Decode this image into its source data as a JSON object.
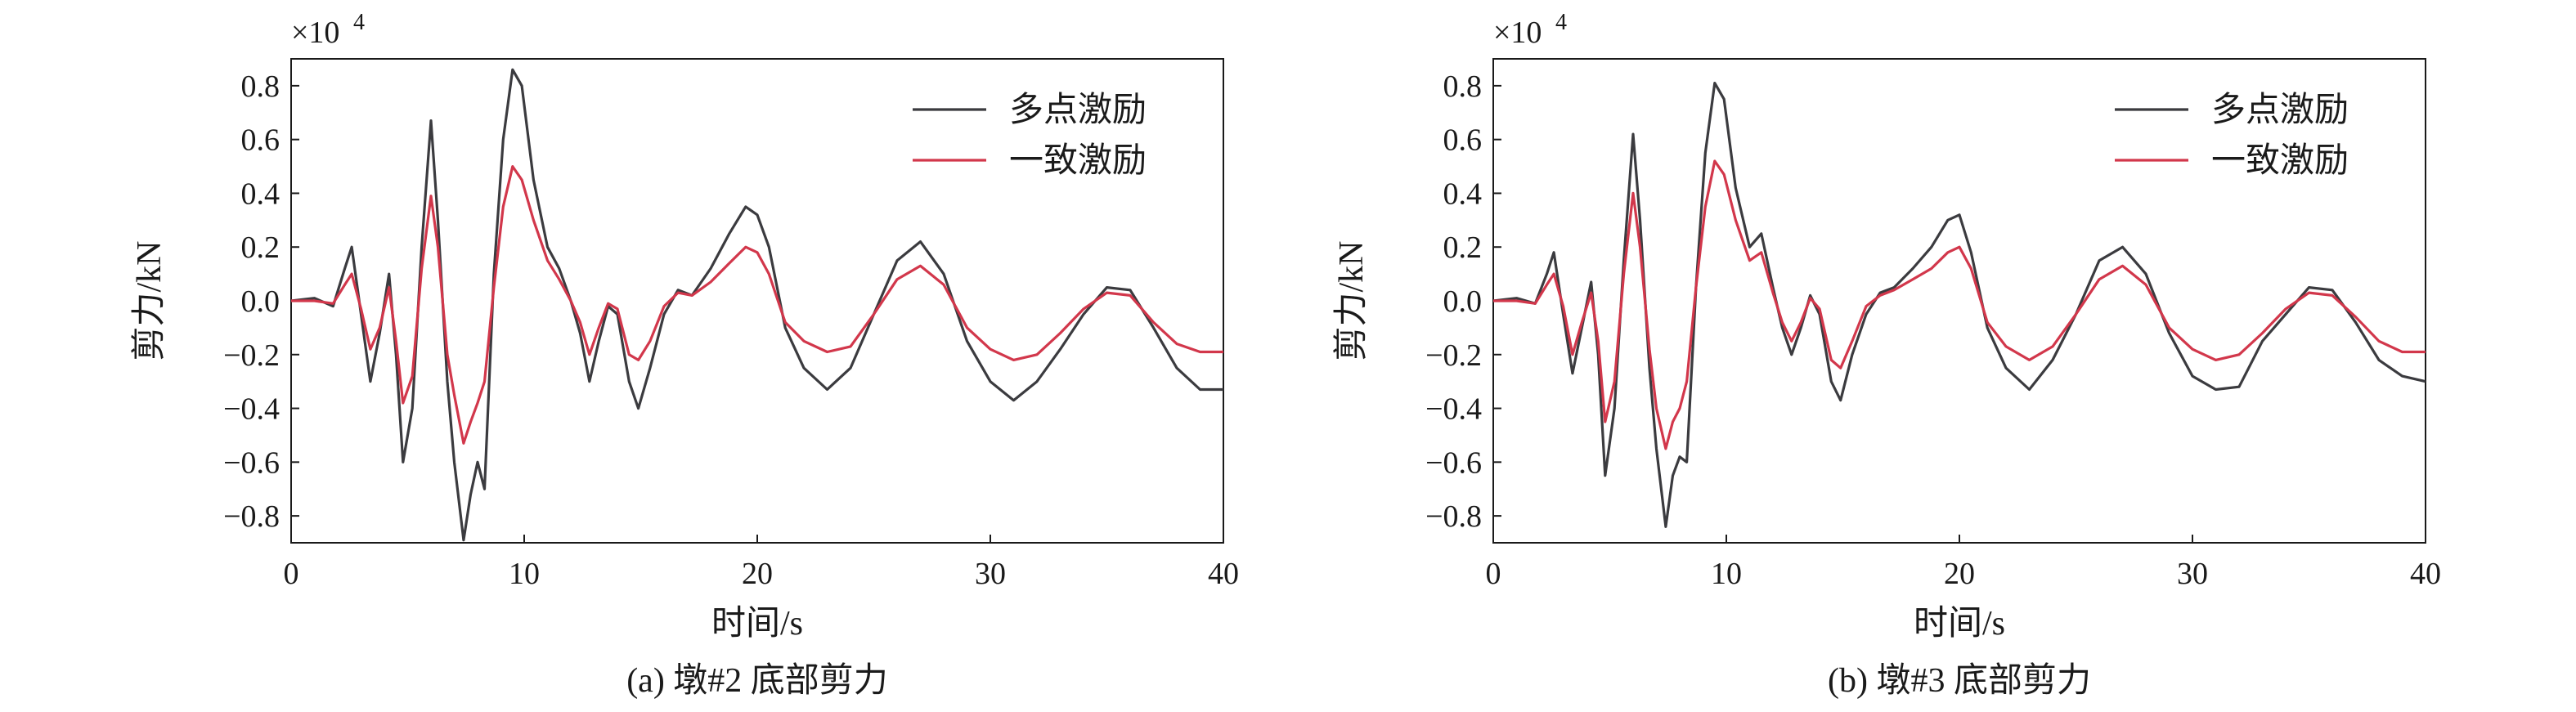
{
  "chart_data": [
    {
      "type": "line",
      "subtitle": "(a) 墩#2 底部剪力",
      "xlabel": "时间/s",
      "ylabel": "剪力/kN",
      "y_multiplier": "×10",
      "y_multiplier_exp": "4",
      "xlim": [
        0,
        40
      ],
      "ylim": [
        -0.9,
        0.9
      ],
      "xticks": [
        0,
        10,
        20,
        30,
        40
      ],
      "yticks": [
        -0.8,
        -0.6,
        -0.4,
        -0.2,
        0.0,
        0.2,
        0.4,
        0.6,
        0.8
      ],
      "grid": false,
      "legend_position": "top-right",
      "series": [
        {
          "name": "多点激励",
          "color": "#3b3b3f",
          "x": [
            0,
            1.0,
            1.8,
            2.3,
            2.6,
            3.0,
            3.4,
            3.8,
            4.2,
            4.5,
            4.8,
            5.2,
            5.6,
            6.0,
            6.3,
            6.7,
            7.0,
            7.4,
            7.7,
            8.0,
            8.3,
            8.7,
            9.1,
            9.5,
            9.9,
            10.4,
            11.0,
            11.5,
            12.0,
            12.4,
            12.8,
            13.2,
            13.6,
            14.0,
            14.5,
            14.9,
            15.4,
            16.0,
            16.6,
            17.2,
            18.0,
            18.8,
            19.5,
            20.0,
            20.5,
            21.2,
            22.0,
            23.0,
            24.0,
            25.0,
            26.0,
            27.0,
            28.0,
            29.0,
            30.0,
            31.0,
            32.0,
            33.0,
            34.0,
            35.0,
            36.0,
            37.0,
            38.0,
            39.0,
            40.0
          ],
          "values": [
            0,
            0.01,
            -0.02,
            0.12,
            0.2,
            -0.05,
            -0.3,
            -0.12,
            0.1,
            -0.2,
            -0.6,
            -0.4,
            0.2,
            0.67,
            0.3,
            -0.3,
            -0.6,
            -0.89,
            -0.72,
            -0.6,
            -0.7,
            0.1,
            0.6,
            0.86,
            0.8,
            0.45,
            0.2,
            0.12,
            0.0,
            -0.12,
            -0.3,
            -0.15,
            -0.02,
            -0.05,
            -0.3,
            -0.4,
            -0.25,
            -0.05,
            0.04,
            0.02,
            0.12,
            0.25,
            0.35,
            0.32,
            0.2,
            -0.1,
            -0.25,
            -0.33,
            -0.25,
            -0.05,
            0.15,
            0.22,
            0.1,
            -0.15,
            -0.3,
            -0.37,
            -0.3,
            -0.18,
            -0.05,
            0.05,
            0.04,
            -0.1,
            -0.25,
            -0.33,
            -0.33
          ]
        },
        {
          "name": "一致激励",
          "color": "#d2374b",
          "x": [
            0,
            1.0,
            1.8,
            2.3,
            2.6,
            3.0,
            3.4,
            3.8,
            4.2,
            4.5,
            4.8,
            5.2,
            5.6,
            6.0,
            6.3,
            6.7,
            7.0,
            7.4,
            7.7,
            8.0,
            8.3,
            8.7,
            9.1,
            9.5,
            9.9,
            10.4,
            11.0,
            11.5,
            12.0,
            12.4,
            12.8,
            13.2,
            13.6,
            14.0,
            14.5,
            14.9,
            15.4,
            16.0,
            16.6,
            17.2,
            18.0,
            18.8,
            19.5,
            20.0,
            20.5,
            21.2,
            22.0,
            23.0,
            24.0,
            25.0,
            26.0,
            27.0,
            28.0,
            29.0,
            30.0,
            31.0,
            32.0,
            33.0,
            34.0,
            35.0,
            36.0,
            37.0,
            38.0,
            39.0,
            40.0
          ],
          "values": [
            0,
            0.0,
            -0.01,
            0.06,
            0.1,
            -0.03,
            -0.18,
            -0.1,
            0.05,
            -0.15,
            -0.38,
            -0.28,
            0.12,
            0.39,
            0.2,
            -0.2,
            -0.35,
            -0.53,
            -0.45,
            -0.38,
            -0.3,
            0.05,
            0.35,
            0.5,
            0.45,
            0.3,
            0.15,
            0.08,
            0.0,
            -0.08,
            -0.2,
            -0.1,
            -0.01,
            -0.03,
            -0.2,
            -0.22,
            -0.15,
            -0.02,
            0.03,
            0.02,
            0.07,
            0.14,
            0.2,
            0.18,
            0.1,
            -0.08,
            -0.15,
            -0.19,
            -0.17,
            -0.05,
            0.08,
            0.13,
            0.06,
            -0.1,
            -0.18,
            -0.22,
            -0.2,
            -0.12,
            -0.03,
            0.03,
            0.02,
            -0.08,
            -0.16,
            -0.19,
            -0.19
          ]
        }
      ]
    },
    {
      "type": "line",
      "subtitle": "(b) 墩#3 底部剪力",
      "xlabel": "时间/s",
      "ylabel": "剪力/kN",
      "y_multiplier": "×10",
      "y_multiplier_exp": "4",
      "xlim": [
        0,
        40
      ],
      "ylim": [
        -0.9,
        0.9
      ],
      "xticks": [
        0,
        10,
        20,
        30,
        40
      ],
      "yticks": [
        -0.8,
        -0.6,
        -0.4,
        -0.2,
        0.0,
        0.2,
        0.4,
        0.6,
        0.8
      ],
      "grid": false,
      "legend_position": "top-right",
      "series": [
        {
          "name": "多点激励",
          "color": "#3b3b3f",
          "x": [
            0,
            1.0,
            1.8,
            2.3,
            2.6,
            3.0,
            3.4,
            3.8,
            4.2,
            4.5,
            4.8,
            5.2,
            5.6,
            6.0,
            6.3,
            6.7,
            7.0,
            7.4,
            7.7,
            8.0,
            8.3,
            8.7,
            9.1,
            9.5,
            9.9,
            10.4,
            11.0,
            11.5,
            12.0,
            12.4,
            12.8,
            13.2,
            13.6,
            14.0,
            14.5,
            14.9,
            15.4,
            16.0,
            16.6,
            17.2,
            18.0,
            18.8,
            19.5,
            20.0,
            20.5,
            21.2,
            22.0,
            23.0,
            24.0,
            25.0,
            26.0,
            27.0,
            28.0,
            29.0,
            30.0,
            31.0,
            32.0,
            33.0,
            34.0,
            35.0,
            36.0,
            37.0,
            38.0,
            39.0,
            40.0
          ],
          "values": [
            0,
            0.01,
            -0.01,
            0.1,
            0.18,
            -0.05,
            -0.27,
            -0.1,
            0.07,
            -0.2,
            -0.65,
            -0.4,
            0.15,
            0.62,
            0.3,
            -0.25,
            -0.55,
            -0.84,
            -0.65,
            -0.58,
            -0.6,
            0.05,
            0.55,
            0.81,
            0.75,
            0.42,
            0.2,
            0.25,
            0.05,
            -0.1,
            -0.2,
            -0.1,
            0.02,
            -0.05,
            -0.3,
            -0.37,
            -0.2,
            -0.05,
            0.03,
            0.05,
            0.12,
            0.2,
            0.3,
            0.32,
            0.18,
            -0.1,
            -0.25,
            -0.33,
            -0.22,
            -0.05,
            0.15,
            0.2,
            0.1,
            -0.12,
            -0.28,
            -0.33,
            -0.32,
            -0.15,
            -0.05,
            0.05,
            0.04,
            -0.08,
            -0.22,
            -0.28,
            -0.3
          ]
        },
        {
          "name": "一致激励",
          "color": "#d2374b",
          "x": [
            0,
            1.0,
            1.8,
            2.3,
            2.6,
            3.0,
            3.4,
            3.8,
            4.2,
            4.5,
            4.8,
            5.2,
            5.6,
            6.0,
            6.3,
            6.7,
            7.0,
            7.4,
            7.7,
            8.0,
            8.3,
            8.7,
            9.1,
            9.5,
            9.9,
            10.4,
            11.0,
            11.5,
            12.0,
            12.4,
            12.8,
            13.2,
            13.6,
            14.0,
            14.5,
            14.9,
            15.4,
            16.0,
            16.6,
            17.2,
            18.0,
            18.8,
            19.5,
            20.0,
            20.5,
            21.2,
            22.0,
            23.0,
            24.0,
            25.0,
            26.0,
            27.0,
            28.0,
            29.0,
            30.0,
            31.0,
            32.0,
            33.0,
            34.0,
            35.0,
            36.0,
            37.0,
            38.0,
            39.0,
            40.0
          ],
          "values": [
            0,
            0.0,
            -0.01,
            0.06,
            0.1,
            -0.02,
            -0.2,
            -0.08,
            0.03,
            -0.15,
            -0.45,
            -0.3,
            0.1,
            0.4,
            0.2,
            -0.18,
            -0.4,
            -0.55,
            -0.45,
            -0.4,
            -0.3,
            0.05,
            0.35,
            0.52,
            0.47,
            0.3,
            0.15,
            0.18,
            0.03,
            -0.08,
            -0.15,
            -0.08,
            0.01,
            -0.03,
            -0.22,
            -0.25,
            -0.15,
            -0.02,
            0.02,
            0.04,
            0.08,
            0.12,
            0.18,
            0.2,
            0.12,
            -0.08,
            -0.17,
            -0.22,
            -0.17,
            -0.05,
            0.08,
            0.13,
            0.06,
            -0.1,
            -0.18,
            -0.22,
            -0.2,
            -0.12,
            -0.03,
            0.03,
            0.02,
            -0.06,
            -0.15,
            -0.19,
            -0.19
          ]
        }
      ]
    }
  ]
}
